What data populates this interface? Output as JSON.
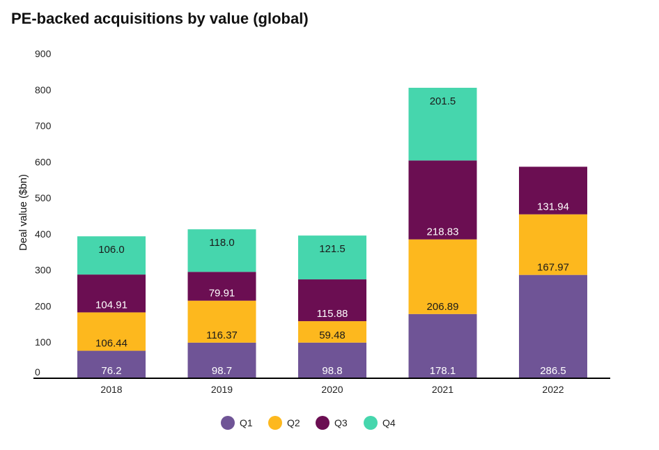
{
  "chart_data": {
    "type": "bar",
    "stacked": true,
    "title": "PE-backed acquisitions by value (global)",
    "xlabel": "",
    "ylabel": "Deal value ($bn)",
    "ylim": [
      0,
      900
    ],
    "yticks": [
      0,
      100,
      200,
      300,
      400,
      500,
      600,
      700,
      800,
      900
    ],
    "grid": false,
    "legend_position": "bottom",
    "categories": [
      "2018",
      "2019",
      "2020",
      "2021",
      "2022"
    ],
    "series": [
      {
        "name": "Q1",
        "color": "#6f5496",
        "label_color": "#ffffff",
        "values": [
          76.2,
          98.7,
          98.8,
          178.1,
          286.5
        ],
        "labels": [
          "76.2",
          "98.7",
          "98.8",
          "178.1",
          "286.5"
        ]
      },
      {
        "name": "Q2",
        "color": "#fdb81e",
        "label_color": "#1a1a1a",
        "values": [
          106.44,
          116.37,
          59.48,
          206.89,
          167.97
        ],
        "labels": [
          "106.44",
          "116.37",
          "59.48",
          "206.89",
          "167.97"
        ]
      },
      {
        "name": "Q3",
        "color": "#6b0e52",
        "label_color": "#ffffff",
        "values": [
          104.91,
          79.91,
          115.88,
          218.83,
          131.94
        ],
        "labels": [
          "104.91",
          "79.91",
          "115.88",
          "218.83",
          "131.94"
        ]
      },
      {
        "name": "Q4",
        "color": "#46d6ad",
        "label_color": "#1a1a1a",
        "values": [
          106.0,
          118.0,
          121.5,
          201.5,
          null
        ],
        "labels": [
          "106.0",
          "118.0",
          "121.5",
          "201.5",
          null
        ]
      }
    ]
  }
}
